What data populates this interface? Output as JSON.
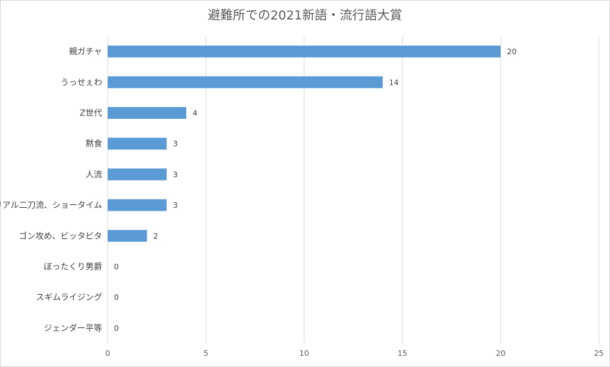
{
  "chart_data": {
    "type": "bar",
    "orientation": "horizontal",
    "title": "避難所での2021新語・流行語大賞",
    "categories": [
      "親ガチャ",
      "うっせぇわ",
      "Z世代",
      "黙食",
      "人流",
      "リアル二刀流、ショータイム",
      "ゴン攻め、ビッタビタ",
      "ぼったくり男爵",
      "スギムライジング",
      "ジェンダー平等"
    ],
    "values": [
      20,
      14,
      4,
      3,
      3,
      3,
      2,
      0,
      0,
      0
    ],
    "xlim": [
      0,
      25
    ],
    "xticks": [
      0,
      5,
      10,
      15,
      20,
      25
    ],
    "xlabel": "",
    "ylabel": "",
    "grid": true,
    "legend": "none",
    "bar_color": "#5b9bd5"
  }
}
